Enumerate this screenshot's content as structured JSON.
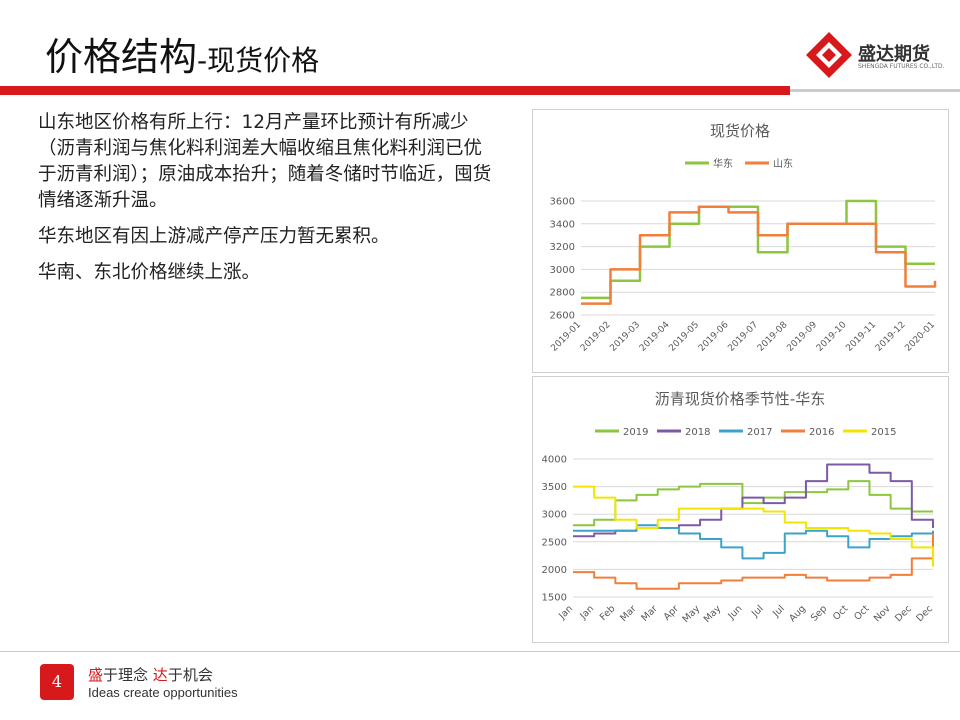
{
  "slide": {
    "title_main": "价格结构",
    "title_sub": "-现货价格",
    "page_number": "4"
  },
  "logo": {
    "name": "盛达期货",
    "english": "SHENGDA FUTURES CO.,LTD."
  },
  "content": {
    "paragraphs": [
      "山东地区价格有所上行：12月产量环比预计有所减少（沥青利润与焦化料利润差大幅收缩且焦化料利润已优于沥青利润）；原油成本抬升；随着冬储时节临近，囤货情绪逐渐升温。",
      "华东地区有因上游减产停产压力暂无累积。",
      "华南、东北价格继续上涨。"
    ]
  },
  "footer": {
    "slogan_part1": "盛",
    "slogan_part2": "于理念 ",
    "slogan_part3": "达",
    "slogan_part4": "于机会",
    "slogan_en": "Ideas create opportunities"
  },
  "colors": {
    "brand_red": "#d7191c"
  },
  "chart_data": [
    {
      "type": "line",
      "title": "现货价格",
      "x": [
        "2019-01",
        "2019-02",
        "2019-03",
        "2019-04",
        "2019-05",
        "2019-06",
        "2019-07",
        "2019-08",
        "2019-09",
        "2019-10",
        "2019-11",
        "2019-12",
        "2020-01"
      ],
      "ylim": [
        2600,
        3600
      ],
      "yticks": [
        2600,
        2800,
        3000,
        3200,
        3400,
        3600
      ],
      "grid": true,
      "legend": "top",
      "series": [
        {
          "name": "华东",
          "color": "#8cc63f",
          "values": [
            2750,
            2900,
            3200,
            3400,
            3550,
            3550,
            3150,
            3400,
            3400,
            3600,
            3200,
            3050,
            3050
          ]
        },
        {
          "name": "山东",
          "color": "#f07f3c",
          "values": [
            2700,
            3000,
            3300,
            3500,
            3550,
            3500,
            3300,
            3400,
            3400,
            3400,
            3150,
            2850,
            2900
          ]
        }
      ]
    },
    {
      "type": "line",
      "title": "沥青现货价格季节性-华东",
      "x": [
        "Jan",
        "Jan",
        "Feb",
        "Mar",
        "Mar",
        "Apr",
        "May",
        "May",
        "Jun",
        "Jul",
        "Jul",
        "Aug",
        "Sep",
        "Oct",
        "Oct",
        "Nov",
        "Dec",
        "Dec"
      ],
      "ylim": [
        1500,
        4000
      ],
      "yticks": [
        1500,
        2000,
        2500,
        3000,
        3500,
        4000
      ],
      "grid": true,
      "legend": "top",
      "series": [
        {
          "name": "2019",
          "color": "#8cc63f",
          "values": [
            2800,
            2900,
            3250,
            3350,
            3450,
            3500,
            3550,
            3550,
            3200,
            3300,
            3400,
            3400,
            3450,
            3600,
            3350,
            3100,
            3050,
            3050
          ]
        },
        {
          "name": "2018",
          "color": "#7d5aa6",
          "values": [
            2600,
            2650,
            2700,
            2750,
            2750,
            2800,
            2900,
            3100,
            3300,
            3200,
            3300,
            3600,
            3900,
            3900,
            3750,
            3600,
            2900,
            2750
          ]
        },
        {
          "name": "2017",
          "color": "#3ba3c7",
          "values": [
            2700,
            2700,
            2700,
            2800,
            2750,
            2650,
            2550,
            2400,
            2200,
            2300,
            2650,
            2700,
            2600,
            2400,
            2550,
            2600,
            2650,
            2700
          ]
        },
        {
          "name": "2016",
          "color": "#f07f3c",
          "values": [
            1950,
            1850,
            1750,
            1650,
            1650,
            1750,
            1750,
            1800,
            1850,
            1850,
            1900,
            1850,
            1800,
            1800,
            1850,
            1900,
            2200,
            2650
          ]
        },
        {
          "name": "2015",
          "color": "#f2e600",
          "values": [
            3500,
            3300,
            2900,
            2750,
            2900,
            3100,
            3100,
            3100,
            3100,
            3050,
            2850,
            2750,
            2750,
            2700,
            2650,
            2550,
            2400,
            2050
          ]
        }
      ]
    }
  ]
}
